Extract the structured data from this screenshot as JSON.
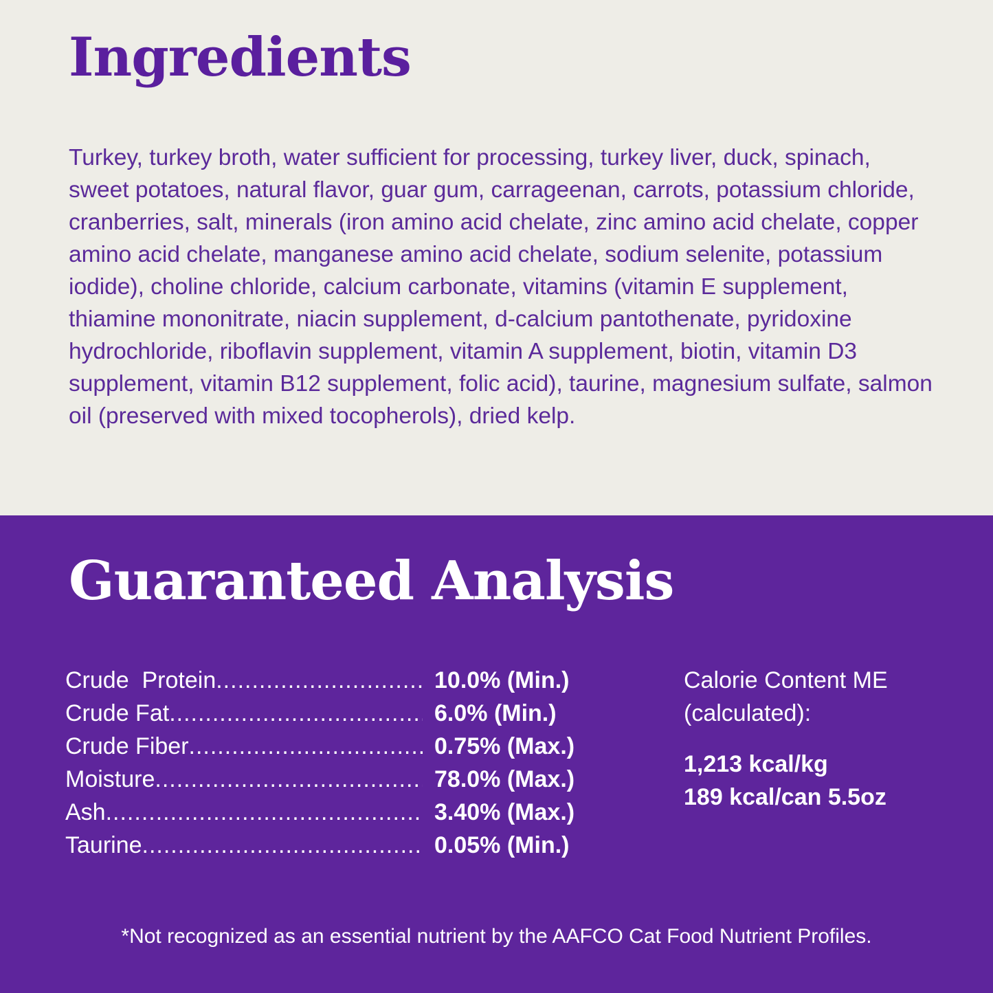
{
  "colors": {
    "top_bg": "#eeede7",
    "bottom_bg": "#5e259c",
    "title_purple": "#5a1f9e",
    "text_purple": "#5b2a9a",
    "white": "#ffffff"
  },
  "ingredients": {
    "title": "Ingredients",
    "text": "Turkey, turkey broth, water sufficient for processing, turkey liver, duck, spinach, sweet potatoes, natural flavor, guar gum, carrageenan, carrots, potassium chloride, cranberries, salt, minerals (iron amino acid chelate, zinc amino acid chelate, copper amino acid chelate, manganese amino acid chelate, sodium selenite, potassium iodide), choline chloride, calcium carbonate, vitamins (vitamin E supplement, thiamine mononitrate, niacin supplement, d-calcium pantothenate, pyridoxine hydrochloride, riboflavin supplement, vitamin A supplement, biotin, vitamin D3 supplement, vitamin B12 supplement, folic acid), taurine, magnesium sulfate, salmon oil (preserved with mixed tocopherols), dried kelp."
  },
  "analysis": {
    "title": "Guaranteed Analysis",
    "rows": [
      {
        "label": "Crude  Protein",
        "value": "10.0% (Min.)"
      },
      {
        "label": "Crude Fat",
        "value": "6.0% (Min.)"
      },
      {
        "label": "Crude Fiber",
        "value": "0.75% (Max.)"
      },
      {
        "label": "Moisture",
        "value": "78.0% (Max.)"
      },
      {
        "label": "Ash",
        "value": "3.40% (Max.)"
      },
      {
        "label": "Taurine",
        "value": "0.05% (Min.)"
      }
    ],
    "calorie": {
      "label_line1": "Calorie Content ME",
      "label_line2": "(calculated):",
      "per_kg": "1,213 kcal/kg",
      "per_can": "189 kcal/can 5.5oz"
    },
    "footnote": "*Not recognized as an essential nutrient by the AAFCO Cat Food Nutrient Profiles."
  }
}
